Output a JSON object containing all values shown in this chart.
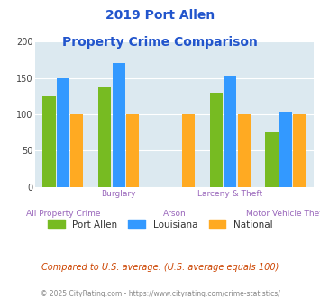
{
  "title_line1": "2019 Port Allen",
  "title_line2": "Property Crime Comparison",
  "title_color": "#2255cc",
  "x_label_top": [
    "",
    "Burglary",
    "",
    "Larceny & Theft",
    ""
  ],
  "x_label_bottom": [
    "All Property Crime",
    "",
    "Arson",
    "",
    "Motor Vehicle Theft"
  ],
  "series": {
    "Port Allen": {
      "color": "#77bb22",
      "values": [
        125,
        137,
        0,
        130,
        75
      ]
    },
    "Louisiana": {
      "color": "#3399ff",
      "values": [
        150,
        170,
        0,
        152,
        104
      ]
    },
    "National": {
      "color": "#ffaa22",
      "values": [
        100,
        100,
        100,
        100,
        100
      ]
    }
  },
  "ylim": [
    0,
    200
  ],
  "yticks": [
    0,
    50,
    100,
    150,
    200
  ],
  "plot_bg_color": "#dce9f0",
  "grid_color": "#ffffff",
  "footer_text": "Compared to U.S. average. (U.S. average equals 100)",
  "footer_color": "#cc4400",
  "copyright_text": "© 2025 CityRating.com - https://www.cityrating.com/crime-statistics/",
  "copyright_color": "#888888",
  "legend_labels": [
    "Port Allen",
    "Louisiana",
    "National"
  ],
  "legend_colors": [
    "#77bb22",
    "#3399ff",
    "#ffaa22"
  ],
  "bar_width": 0.25,
  "label_color": "#9966bb",
  "n_cats": 5
}
